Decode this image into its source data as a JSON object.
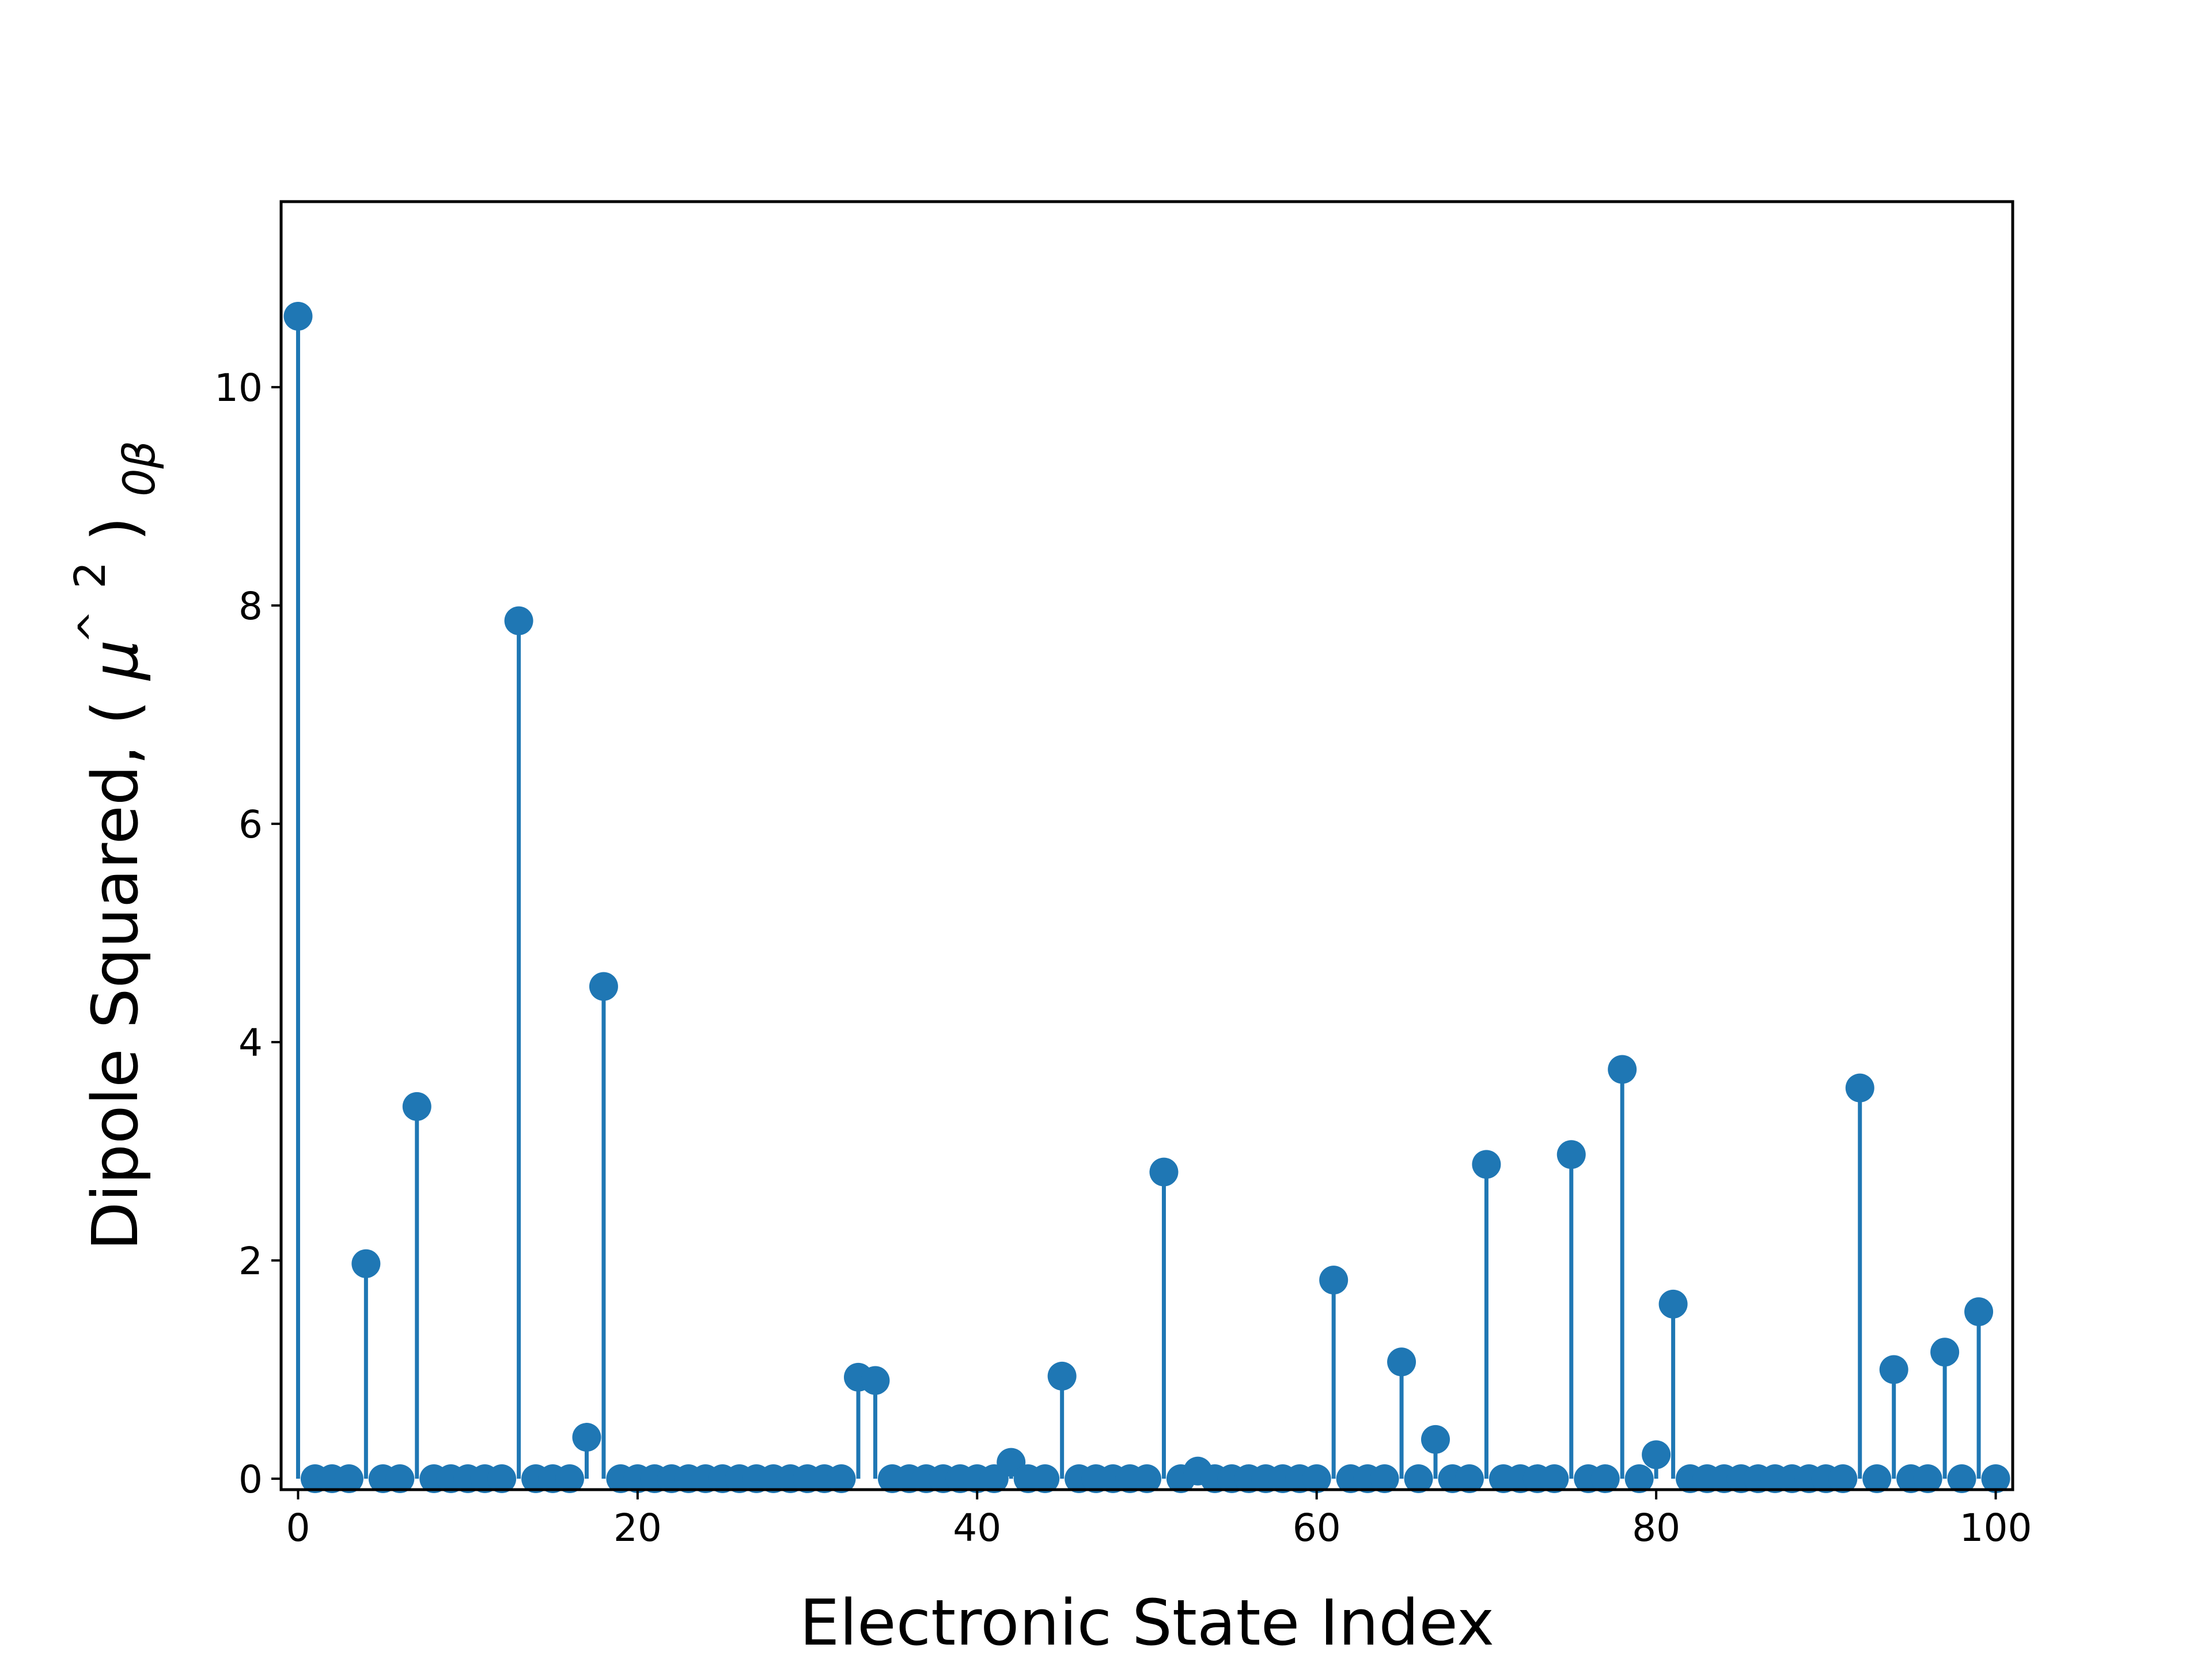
{
  "chart_data": {
    "type": "stem",
    "xlabel": "Electronic State Index",
    "ylabel": "Dipole Squared, ",
    "ylabel_math": {
      "paren_open": "(",
      "mu": "μ",
      "hat": "^",
      "power": "2",
      "paren_close": ")",
      "subscript": "0β"
    },
    "xlim": [
      -1,
      101
    ],
    "ylim": [
      -0.1,
      11.7
    ],
    "xticks": [
      0,
      20,
      40,
      60,
      80,
      100
    ],
    "yticks": [
      0,
      2,
      4,
      6,
      8,
      10
    ],
    "grid": false,
    "color": "#1f77b4",
    "x": [
      0,
      1,
      2,
      3,
      4,
      5,
      6,
      7,
      8,
      9,
      10,
      11,
      12,
      13,
      14,
      15,
      16,
      17,
      18,
      19,
      20,
      21,
      22,
      23,
      24,
      25,
      26,
      27,
      28,
      29,
      30,
      31,
      32,
      33,
      34,
      35,
      36,
      37,
      38,
      39,
      40,
      41,
      42,
      43,
      44,
      45,
      46,
      47,
      48,
      49,
      50,
      51,
      52,
      53,
      54,
      55,
      56,
      57,
      58,
      59,
      60,
      61,
      62,
      63,
      64,
      65,
      66,
      67,
      68,
      69,
      70,
      71,
      72,
      73,
      74,
      75,
      76,
      77,
      78,
      79,
      80,
      81,
      82,
      83,
      84,
      85,
      86,
      87,
      88,
      89,
      90,
      91,
      92,
      93,
      94,
      95,
      96,
      97,
      98,
      99,
      100
    ],
    "y": [
      10.65,
      0,
      0,
      0,
      1.97,
      0,
      0,
      3.41,
      0,
      0,
      0,
      0,
      0,
      7.86,
      0,
      0,
      0,
      0.38,
      4.51,
      0,
      0,
      0,
      0,
      0,
      0,
      0,
      0,
      0,
      0,
      0,
      0,
      0,
      0,
      0.93,
      0.9,
      0,
      0,
      0,
      0,
      0,
      0,
      0,
      0.15,
      0,
      0,
      0.94,
      0,
      0,
      0,
      0,
      0,
      2.81,
      0,
      0.07,
      0,
      0,
      0,
      0,
      0,
      0,
      0,
      1.82,
      0,
      0,
      0,
      1.07,
      0,
      0.36,
      0,
      0,
      2.88,
      0,
      0,
      0,
      0,
      2.97,
      0,
      0,
      3.75,
      0,
      0.22,
      1.6,
      0,
      0,
      0,
      0,
      0,
      0,
      0,
      0,
      0,
      0,
      3.58,
      0,
      1.0,
      0,
      0,
      1.16,
      0,
      1.53,
      0
    ]
  }
}
